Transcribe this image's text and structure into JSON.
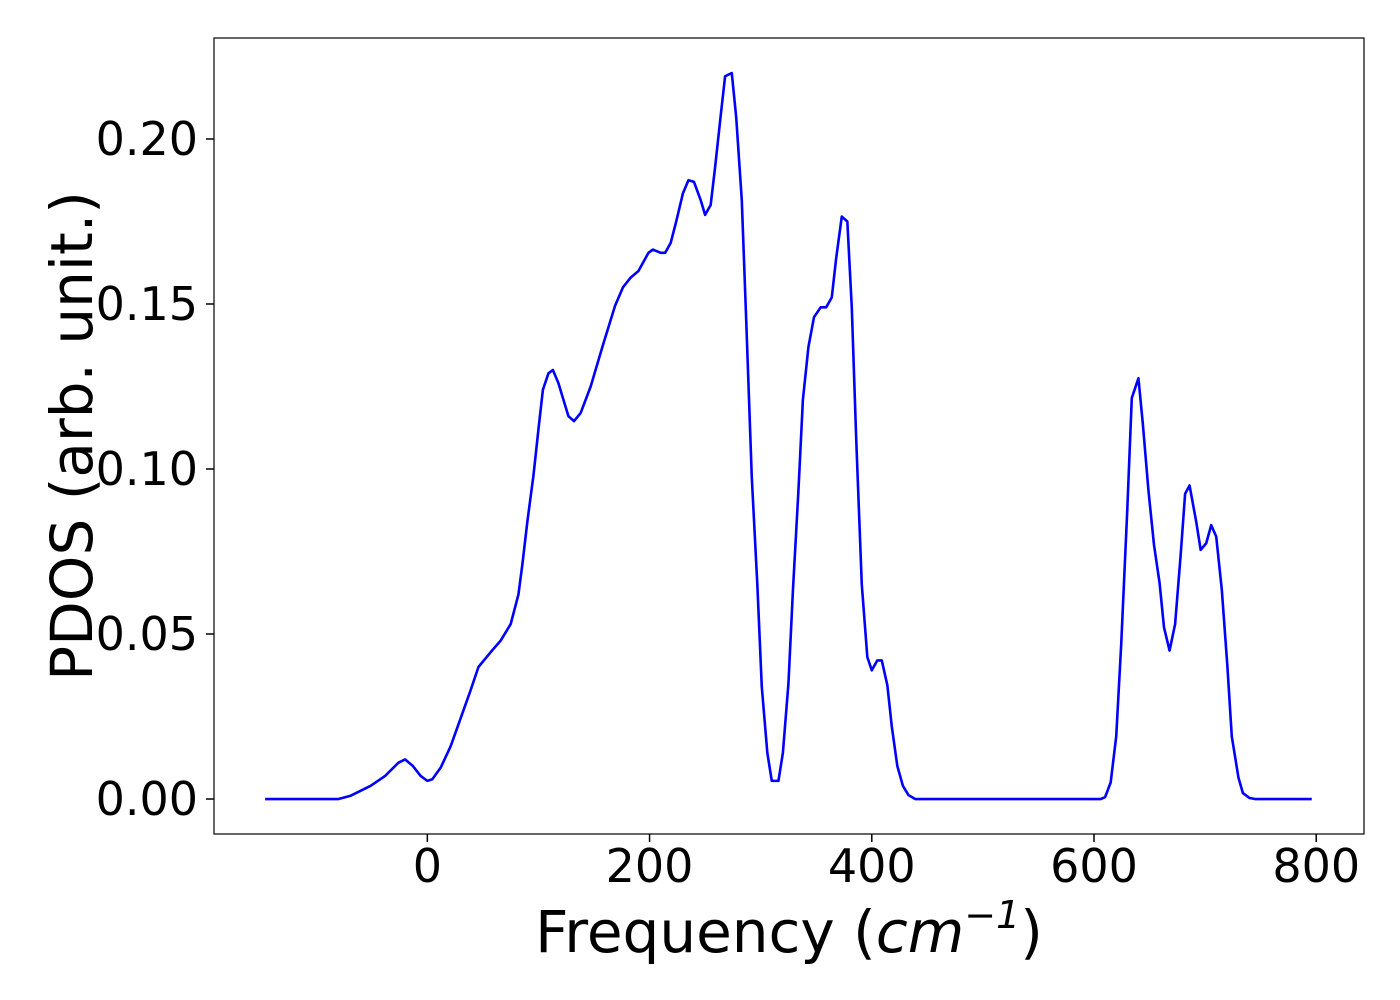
{
  "chart_data": {
    "type": "line",
    "xlabel": [
      "Frequency (",
      "cm",
      "−1",
      ")"
    ],
    "ylabel": "PDOS (arb. unit.)",
    "xlim": [
      -192,
      843
    ],
    "ylim": [
      -0.0106,
      0.2306
    ],
    "xticks": [
      0,
      200,
      400,
      600,
      800
    ],
    "yticks": [
      {
        "value": 0,
        "label": "0.00"
      },
      {
        "value": 0.05,
        "label": "0.05"
      },
      {
        "value": 0.1,
        "label": "0.10"
      },
      {
        "value": 0.15,
        "label": "0.15"
      },
      {
        "value": 0.2,
        "label": "0.20"
      }
    ],
    "grid": false,
    "series": [
      {
        "color": "#0000ff",
        "x": [
          -146,
          -80,
          -69,
          -51,
          -38,
          -26,
          -20,
          -13,
          -6,
          0,
          4.5,
          12,
          21,
          30,
          39,
          46,
          57,
          66,
          75,
          82,
          85.5,
          90,
          95.5,
          100,
          104,
          109,
          113,
          118,
          127,
          132,
          138,
          147,
          158,
          169,
          176,
          183,
          190,
          199,
          203,
          210,
          214,
          219,
          224,
          230,
          235,
          240,
          246,
          250,
          255,
          259,
          264,
          268,
          274,
          278,
          283,
          287,
          292,
          297,
          301,
          306,
          310,
          316,
          320,
          325,
          329,
          334,
          338,
          343,
          348,
          354,
          359,
          364,
          368,
          373,
          378,
          382,
          386,
          391,
          396,
          400,
          405,
          409,
          414,
          418,
          423,
          428,
          433,
          439,
          606,
          610,
          615,
          620,
          624.5,
          630,
          634,
          640,
          644,
          649,
          654,
          659,
          663,
          668,
          673,
          678,
          682,
          686,
          692,
          696,
          701,
          705.5,
          710,
          715,
          720,
          724,
          730,
          734,
          740,
          745,
          796
        ],
        "values": [
          0,
          0,
          0.001,
          0.004,
          0.007,
          0.011,
          0.012,
          0.01,
          0.007,
          0.0055,
          0.006,
          0.0095,
          0.016,
          0.0245,
          0.033,
          0.04,
          0.0445,
          0.048,
          0.053,
          0.062,
          0.071,
          0.084,
          0.098,
          0.112,
          0.124,
          0.129,
          0.13,
          0.126,
          0.116,
          0.1145,
          0.117,
          0.125,
          0.1375,
          0.1495,
          0.155,
          0.158,
          0.16,
          0.1655,
          0.1665,
          0.1655,
          0.1655,
          0.1685,
          0.175,
          0.1835,
          0.1875,
          0.187,
          0.1815,
          0.177,
          0.18,
          0.1915,
          0.207,
          0.219,
          0.22,
          0.2065,
          0.1815,
          0.145,
          0.0975,
          0.065,
          0.034,
          0.014,
          0.0055,
          0.0055,
          0.014,
          0.035,
          0.063,
          0.0935,
          0.121,
          0.137,
          0.146,
          0.149,
          0.149,
          0.152,
          0.164,
          0.1765,
          0.175,
          0.149,
          0.109,
          0.065,
          0.043,
          0.039,
          0.042,
          0.042,
          0.0345,
          0.022,
          0.01,
          0.004,
          0.0012,
          0,
          0,
          0.0006,
          0.005,
          0.019,
          0.047,
          0.088,
          0.1215,
          0.1275,
          0.1135,
          0.0935,
          0.077,
          0.0655,
          0.052,
          0.045,
          0.053,
          0.074,
          0.0925,
          0.095,
          0.084,
          0.0755,
          0.0775,
          0.083,
          0.0795,
          0.0635,
          0.0405,
          0.019,
          0.0065,
          0.0018,
          0.0003,
          0,
          0
        ]
      }
    ]
  }
}
